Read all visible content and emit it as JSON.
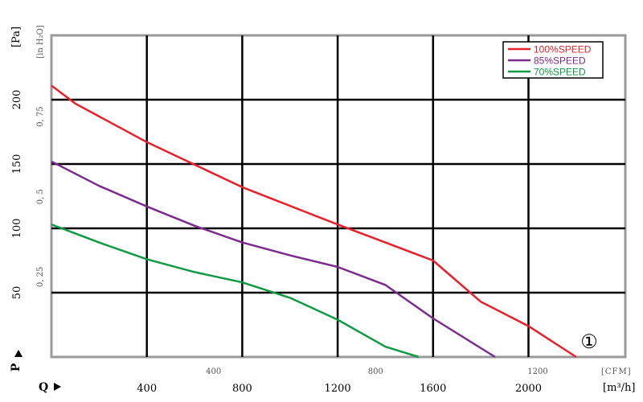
{
  "chart_data": {
    "type": "line",
    "x_unit": "[m³/h]",
    "x2_unit": "[CFM]",
    "y_unit": "[Pa]",
    "y2_unit": "[in H₂O]",
    "x_axis_symbol": "Q",
    "y_axis_symbol": "P",
    "xlim": [
      0,
      2400
    ],
    "ylim": [
      0,
      250
    ],
    "x_ticks": [
      400,
      800,
      1200,
      1600,
      2000
    ],
    "y_ticks": [
      50,
      100,
      150,
      200
    ],
    "x2_ticks": [
      {
        "value": 400,
        "label": "400"
      },
      {
        "value": 800,
        "label": "800"
      },
      {
        "value": 1200,
        "label": "1200"
      }
    ],
    "y2_ticks": [
      {
        "value": 0.25,
        "label": "0, 25"
      },
      {
        "value": 0.5,
        "label": "0, 5"
      },
      {
        "value": 0.75,
        "label": "0, 75"
      }
    ],
    "series": [
      {
        "name": "100%SPEED",
        "color": "#e8202a",
        "points": [
          [
            0,
            211
          ],
          [
            100,
            197
          ],
          [
            400,
            167
          ],
          [
            800,
            132
          ],
          [
            1200,
            103
          ],
          [
            1400,
            89
          ],
          [
            1600,
            75
          ],
          [
            1800,
            43
          ],
          [
            2000,
            24
          ],
          [
            2200,
            0
          ]
        ]
      },
      {
        "name": "85%SPEED",
        "color": "#7b2a8e",
        "points": [
          [
            0,
            152
          ],
          [
            200,
            133
          ],
          [
            400,
            117
          ],
          [
            600,
            102
          ],
          [
            800,
            89
          ],
          [
            1000,
            79
          ],
          [
            1200,
            70
          ],
          [
            1400,
            56
          ],
          [
            1600,
            30
          ],
          [
            1860,
            0
          ]
        ]
      },
      {
        "name": "70%SPEED",
        "color": "#109a45",
        "points": [
          [
            0,
            103
          ],
          [
            200,
            89
          ],
          [
            400,
            76
          ],
          [
            600,
            66
          ],
          [
            800,
            58
          ],
          [
            1000,
            46
          ],
          [
            1200,
            29
          ],
          [
            1400,
            8
          ],
          [
            1540,
            0
          ]
        ]
      }
    ],
    "grid": true,
    "legend_position": "top-right",
    "annotation": "①"
  }
}
